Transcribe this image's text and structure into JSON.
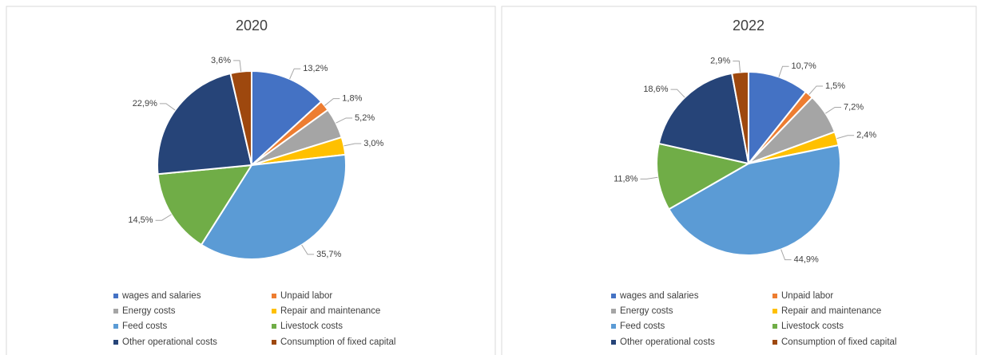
{
  "chart_data": [
    {
      "type": "pie",
      "title": "2020",
      "categories": [
        "wages and salaries",
        "Unpaid labor",
        "Energy costs",
        "Repair and maintenance",
        "Feed costs",
        "Livestock costs",
        "Other operational costs",
        "Consumption of fixed capital"
      ],
      "values": [
        13.2,
        1.8,
        5.2,
        3.0,
        35.7,
        14.5,
        22.9,
        3.6
      ],
      "value_labels": [
        "13,2%",
        "1,8%",
        "5,2%",
        "3,0%",
        "35,7%",
        "14,5%",
        "22,9%",
        "3,6%"
      ],
      "colors": [
        "#4472c4",
        "#ed7d31",
        "#a5a5a5",
        "#ffc000",
        "#5b9bd5",
        "#70ad47",
        "#264478",
        "#9e480e"
      ]
    },
    {
      "type": "pie",
      "title": "2022",
      "categories": [
        "wages and salaries",
        "Unpaid labor",
        "Energy costs",
        "Repair and maintenance",
        "Feed costs",
        "Livestock costs",
        "Other operational costs",
        "Consumption of fixed capital"
      ],
      "values": [
        10.7,
        1.5,
        7.2,
        2.4,
        44.9,
        11.8,
        18.6,
        2.9
      ],
      "value_labels": [
        "10,7%",
        "1,5%",
        "7,2%",
        "2,4%",
        "44,9%",
        "11,8%",
        "18,6%",
        "2,9%"
      ],
      "colors": [
        "#4472c4",
        "#ed7d31",
        "#a5a5a5",
        "#ffc000",
        "#5b9bd5",
        "#70ad47",
        "#264478",
        "#9e480e"
      ]
    }
  ]
}
